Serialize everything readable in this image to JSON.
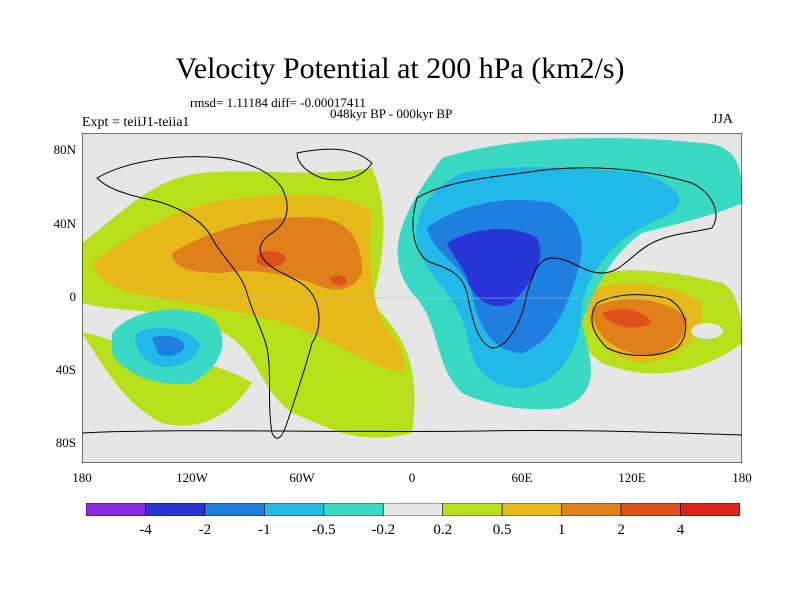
{
  "title": "Velocity Potential at 200 hPa (km2/s)",
  "stats_line": "rmsd= 1.11184 diff= -0.00017411",
  "period_line": "048kyr BP - 000kyr BP",
  "experiment": "Expt = teiiJ1-teiia1",
  "season": "JJA",
  "y_ticks": [
    "80N",
    "40N",
    "0",
    "40S",
    "80S"
  ],
  "x_ticks": [
    "180",
    "120W",
    "60W",
    "0",
    "60E",
    "120E",
    "180"
  ],
  "colorbar": {
    "labels": [
      "-4",
      "-2",
      "-1",
      "-0.5",
      "-0.2",
      "0.2",
      "0.5",
      "1",
      "2",
      "4"
    ],
    "colors": [
      "#8a2be2",
      "#2a35d8",
      "#1f7ee0",
      "#22b8e8",
      "#3ad9c4",
      "#e6e6e6",
      "#b7e01a",
      "#e6b81a",
      "#e0801a",
      "#e0501a",
      "#e0201a"
    ]
  },
  "map_colors": {
    "neutral": "#e6e6e6",
    "weak_pos": "#b7e01a",
    "pos1": "#e6b81a",
    "pos2": "#e0801a",
    "pos3": "#e0501a",
    "neg_weak": "#3ad9c4",
    "neg1": "#22b8e8",
    "neg2": "#1f7ee0",
    "neg3": "#2a35d8"
  }
}
